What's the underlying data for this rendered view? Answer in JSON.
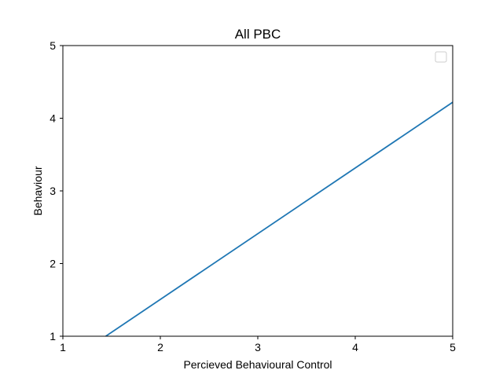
{
  "chart_data": {
    "type": "line",
    "title": "All PBC",
    "xlabel": "Percieved Behavioural Control",
    "ylabel": "Behaviour",
    "xlim": [
      1,
      5
    ],
    "ylim": [
      1,
      5
    ],
    "xticks": [
      "1",
      "2",
      "3",
      "4",
      "5"
    ],
    "yticks": [
      "1",
      "2",
      "3",
      "4",
      "5"
    ],
    "grid": false,
    "legend": {
      "position": "top-right",
      "entries": []
    },
    "series": [
      {
        "color": "#1f77b4",
        "x": [
          1.44,
          5
        ],
        "y": [
          1.0,
          4.22
        ]
      }
    ]
  }
}
